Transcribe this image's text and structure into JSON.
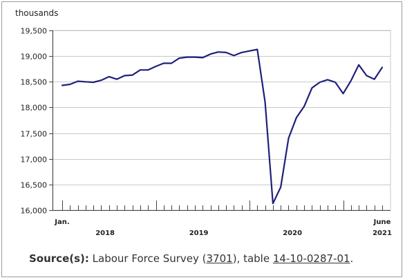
{
  "chart_data": {
    "type": "line",
    "ylabel": "thousands",
    "ylim": [
      16000,
      19500
    ],
    "yticks": [
      16000,
      16500,
      17000,
      17500,
      18000,
      18500,
      19000,
      19500
    ],
    "ytick_labels": [
      "16,000",
      "16,500",
      "17,000",
      "17,500",
      "18,000",
      "18,500",
      "19,000",
      "19,500"
    ],
    "x_start_label": "Jan.",
    "x_end_label": "June",
    "year_labels": [
      {
        "label": "2018",
        "month_index": 5.5
      },
      {
        "label": "2019",
        "month_index": 17.5
      },
      {
        "label": "2020",
        "month_index": 29.5
      },
      {
        "label": "2021",
        "month_index": 41
      }
    ],
    "grid": true,
    "series": [
      {
        "color": "#1f1f7a",
        "x": [
          "2018-01",
          "2018-02",
          "2018-03",
          "2018-04",
          "2018-05",
          "2018-06",
          "2018-07",
          "2018-08",
          "2018-09",
          "2018-10",
          "2018-11",
          "2018-12",
          "2019-01",
          "2019-02",
          "2019-03",
          "2019-04",
          "2019-05",
          "2019-06",
          "2019-07",
          "2019-08",
          "2019-09",
          "2019-10",
          "2019-11",
          "2019-12",
          "2020-01",
          "2020-02",
          "2020-03",
          "2020-04",
          "2020-05",
          "2020-06",
          "2020-07",
          "2020-08",
          "2020-09",
          "2020-10",
          "2020-11",
          "2020-12",
          "2021-01",
          "2021-02",
          "2021-03",
          "2021-04",
          "2021-05",
          "2021-06"
        ],
        "values": [
          18430,
          18450,
          18510,
          18500,
          18490,
          18530,
          18600,
          18550,
          18620,
          18630,
          18730,
          18730,
          18800,
          18860,
          18860,
          18960,
          18980,
          18980,
          18970,
          19040,
          19080,
          19070,
          19010,
          19070,
          19100,
          19130,
          18100,
          16130,
          16450,
          17400,
          17800,
          18020,
          18380,
          18490,
          18540,
          18490,
          18270,
          18520,
          18830,
          18620,
          18550,
          18780
        ]
      }
    ]
  },
  "source": {
    "label": "Source(s):",
    "text1": "Labour Force Survey (",
    "link1": "3701",
    "text2": "), table ",
    "link2": "14-10-0287-01",
    "text3": "."
  }
}
